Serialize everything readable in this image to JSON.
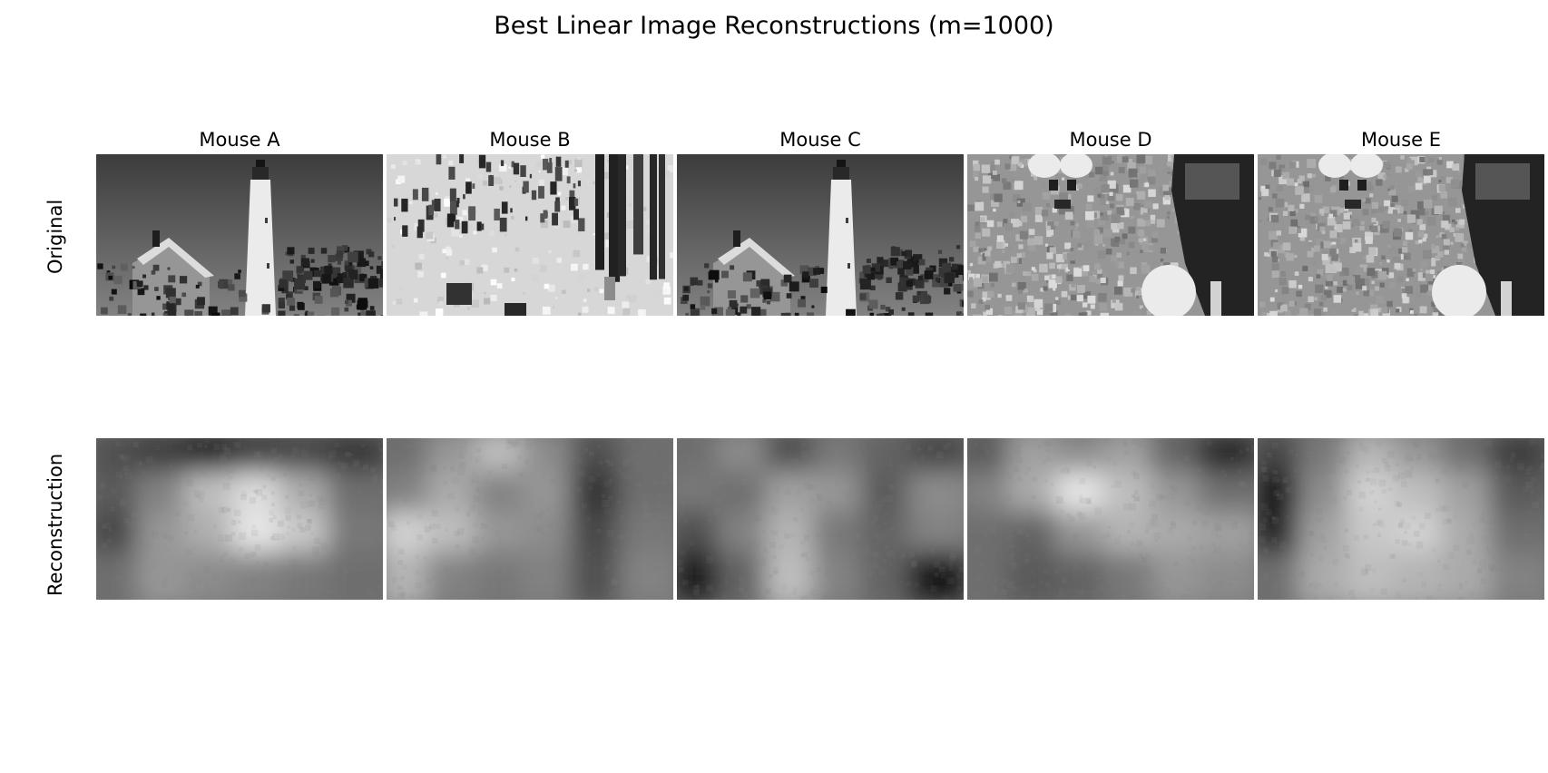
{
  "figure": {
    "title": "Best Linear Image Reconstructions (m=1000)"
  },
  "columns": [
    {
      "label": "Mouse A",
      "original_scene": "lighthouse",
      "reconstruction_scene": "blur-a"
    },
    {
      "label": "Mouse B",
      "original_scene": "snow-forest",
      "reconstruction_scene": "blur-b"
    },
    {
      "label": "Mouse C",
      "original_scene": "lighthouse",
      "reconstruction_scene": "blur-c"
    },
    {
      "label": "Mouse D",
      "original_scene": "furry-animal",
      "reconstruction_scene": "blur-d"
    },
    {
      "label": "Mouse E",
      "original_scene": "furry-animal",
      "reconstruction_scene": "blur-e"
    }
  ],
  "rows": [
    {
      "label": "Original"
    },
    {
      "label": "Reconstruction"
    }
  ],
  "colors": {
    "background": "#ffffff",
    "text": "#000000",
    "colormap": "grayscale"
  }
}
